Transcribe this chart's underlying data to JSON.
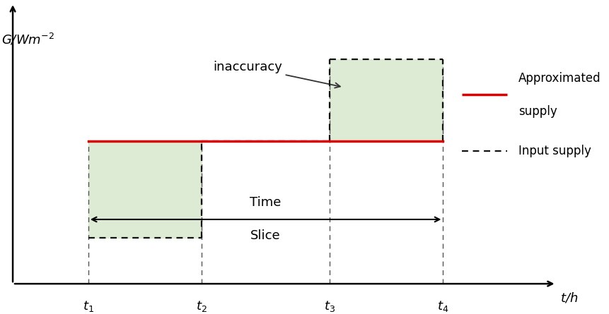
{
  "t1": 1.0,
  "t2": 2.5,
  "t3": 4.2,
  "t4": 5.7,
  "approx_level": 0.56,
  "input_low": 0.18,
  "input_high": 0.88,
  "shade_color": "#ddebd5",
  "approx_color": "#dd0000",
  "input_color": "#111111",
  "ylabel": "$G$/Wm$^{-2}$",
  "xlabel": "$t$/h",
  "legend_approx_line1": "Approximated",
  "legend_approx_line2": "supply",
  "legend_input": "Input supply",
  "inaccuracy_label": "inaccuracy",
  "time_slice_label1": "Time",
  "time_slice_label2": "Slice",
  "xlim": [
    0.0,
    7.2
  ],
  "ylim": [
    0.0,
    1.1
  ]
}
